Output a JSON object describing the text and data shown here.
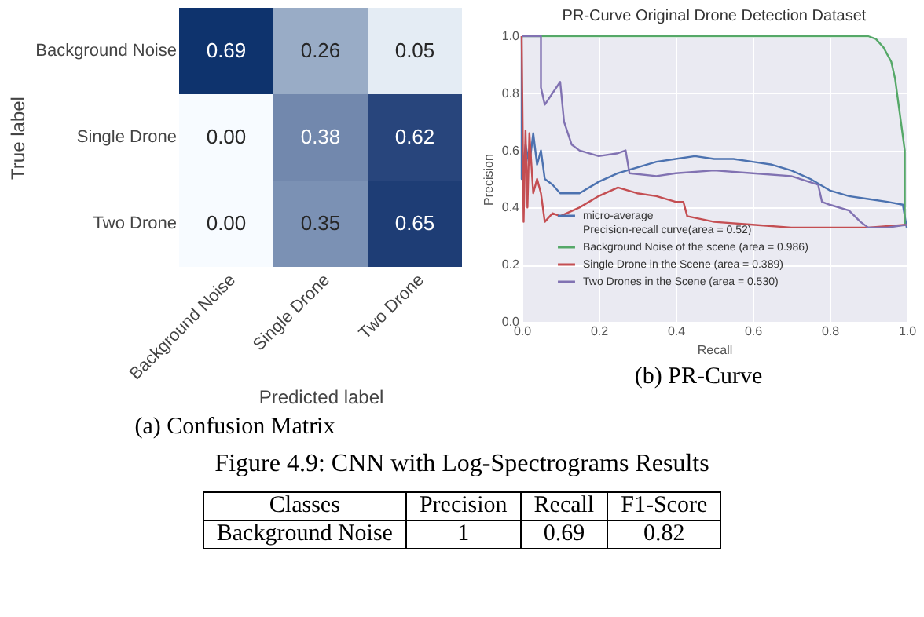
{
  "chart_data": [
    {
      "type": "heatmap",
      "xlabel": "Predicted label",
      "ylabel": "True label",
      "categories": [
        "Background Noise",
        "Single Drone",
        "Two Drone"
      ],
      "y_categories": [
        "Background Noise",
        "Single Drone",
        "Two Drone"
      ],
      "cells": [
        [
          0.69,
          0.26,
          0.05
        ],
        [
          0.0,
          0.38,
          0.62
        ],
        [
          0.0,
          0.35,
          0.65
        ]
      ],
      "cell_labels": [
        [
          "0.69",
          "0.26",
          "0.05"
        ],
        [
          "0.00",
          "0.38",
          "0.62"
        ],
        [
          "0.00",
          "0.35",
          "0.65"
        ]
      ],
      "annotations": [
        "(a) Confusion Matrix"
      ]
    },
    {
      "type": "line",
      "title": "PR-Curve Original Drone Detection Dataset",
      "xlabel": "Recall",
      "ylabel": "Precision",
      "xlim": [
        0,
        1
      ],
      "ylim": [
        0,
        1
      ],
      "xticks": [
        {
          "value": 0,
          "label": "0.0"
        },
        0.2,
        0.4,
        0.6,
        0.8,
        {
          "value": 1,
          "label": "1.0"
        }
      ],
      "yticks": [
        {
          "value": 0,
          "label": "0.0"
        },
        0.2,
        0.4,
        0.6,
        0.8,
        {
          "value": 1,
          "label": "1.0"
        }
      ],
      "grid": true,
      "legend": "bottom left",
      "series": [
        {
          "name": "micro-average\nPrecision-recall curve(area = 0.52)",
          "color": "#4c72b0",
          "x": [
            0,
            0,
            0.01,
            0.02,
            0.03,
            0.04,
            0.05,
            0.06,
            0.08,
            0.1,
            0.15,
            0.2,
            0.25,
            0.3,
            0.35,
            0.4,
            0.45,
            0.5,
            0.55,
            0.6,
            0.65,
            0.7,
            0.75,
            0.8,
            0.85,
            0.9,
            0.95,
            0.99,
            1.0
          ],
          "values": [
            1.0,
            0.5,
            0.62,
            0.55,
            0.66,
            0.55,
            0.6,
            0.5,
            0.48,
            0.45,
            0.45,
            0.49,
            0.52,
            0.54,
            0.56,
            0.57,
            0.58,
            0.57,
            0.57,
            0.56,
            0.55,
            0.53,
            0.5,
            0.46,
            0.44,
            0.43,
            0.42,
            0.41,
            0.33
          ]
        },
        {
          "name": "Background Noise of the scene (area = 0.986)",
          "color": "#55a868",
          "x": [
            0,
            0.9,
            0.92,
            0.94,
            0.96,
            0.97,
            0.98,
            0.99,
            0.995,
            0.995,
            1.0
          ],
          "values": [
            1,
            1,
            0.99,
            0.96,
            0.91,
            0.85,
            0.75,
            0.65,
            0.6,
            0.34,
            0.34
          ]
        },
        {
          "name": "Single Drone in the Scene (area = 0.389)",
          "color": "#c44e52",
          "x": [
            0,
            0.005,
            0.01,
            0.015,
            0.02,
            0.03,
            0.04,
            0.05,
            0.06,
            0.08,
            0.1,
            0.15,
            0.2,
            0.25,
            0.3,
            0.35,
            0.4,
            0.42,
            0.43,
            0.5,
            0.6,
            0.7,
            0.8,
            0.9,
            1.0
          ],
          "values": [
            1.0,
            0.35,
            0.67,
            0.4,
            0.66,
            0.45,
            0.5,
            0.45,
            0.35,
            0.38,
            0.37,
            0.4,
            0.44,
            0.47,
            0.45,
            0.44,
            0.42,
            0.42,
            0.37,
            0.35,
            0.34,
            0.33,
            0.33,
            0.33,
            0.34
          ]
        },
        {
          "name": "Two Drones in the Scene (area = 0.530)",
          "color": "#8172b2",
          "x": [
            0,
            0.05,
            0.05,
            0.06,
            0.1,
            0.11,
            0.13,
            0.15,
            0.2,
            0.25,
            0.27,
            0.28,
            0.35,
            0.4,
            0.5,
            0.6,
            0.7,
            0.77,
            0.78,
            0.8,
            0.85,
            0.88,
            0.9,
            0.95,
            1.0
          ],
          "values": [
            1.0,
            1.0,
            0.82,
            0.76,
            0.84,
            0.7,
            0.62,
            0.6,
            0.58,
            0.59,
            0.6,
            0.52,
            0.51,
            0.52,
            0.53,
            0.52,
            0.51,
            0.48,
            0.42,
            0.41,
            0.39,
            0.35,
            0.33,
            0.33,
            0.34
          ]
        }
      ],
      "annotations": [
        "(b) PR-Curve"
      ]
    },
    {
      "type": "other",
      "title": "Figure 4.9: CNN with Log-Spectrograms Results",
      "annotations": [
        "Classes",
        "Precision",
        "Recall",
        "F1-Score",
        "Background Noise",
        "1",
        "0.69",
        "0.82"
      ]
    }
  ]
}
